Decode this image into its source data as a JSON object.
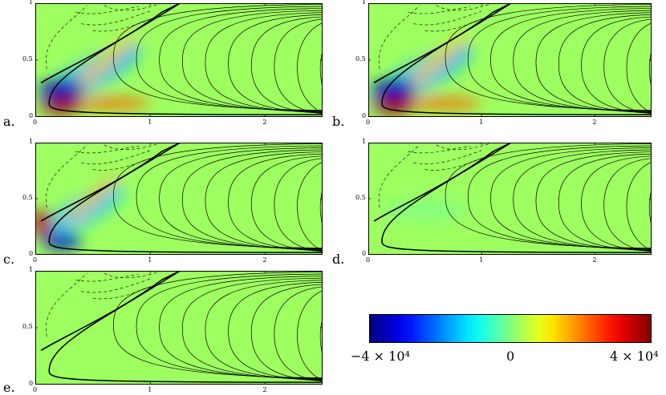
{
  "figure": {
    "panels": [
      {
        "id": "a",
        "label": "a.",
        "strength": 1.0,
        "variant": "full"
      },
      {
        "id": "b",
        "label": "b.",
        "strength": 1.35,
        "variant": "full"
      },
      {
        "id": "c",
        "label": "c.",
        "strength": 0.85,
        "variant": "flip"
      },
      {
        "id": "d",
        "label": "d.",
        "strength": 0.06,
        "variant": "weak"
      },
      {
        "id": "e",
        "label": "e.",
        "strength": 0.0,
        "variant": "none"
      }
    ],
    "axes": {
      "x_ticks": [
        "0",
        "1",
        "2"
      ],
      "y_ticks": [
        "0",
        "0.5",
        "1"
      ],
      "xlim": [
        0,
        2.5
      ],
      "ylim": [
        0,
        1
      ]
    },
    "colorbar": {
      "min_label": "−4 × 10⁴",
      "mid_label": "0",
      "max_label": "4 × 10⁴",
      "colormap": "jet",
      "range": [
        -40000,
        40000
      ]
    }
  }
}
